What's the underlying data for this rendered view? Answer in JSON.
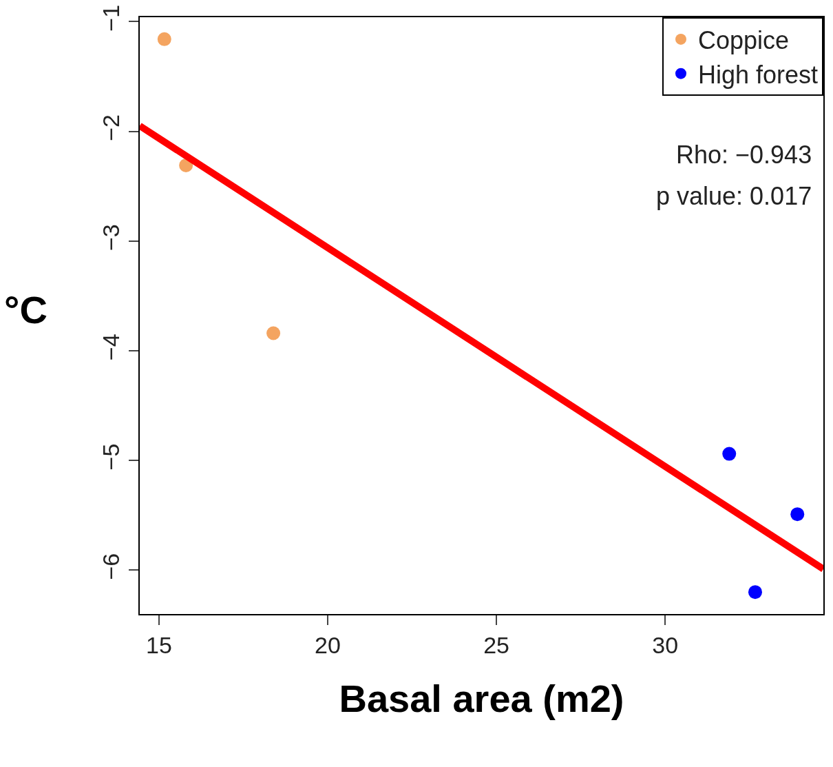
{
  "chart_data": {
    "type": "scatter",
    "xlabel": "Basal area (m2)",
    "ylabel": "°C",
    "xlim": [
      14.43,
      34.69
    ],
    "xticks": [
      15,
      20,
      25,
      30
    ],
    "ylim": [
      -6.4,
      -0.96
    ],
    "yticks": [
      {
        "value": -6,
        "label": "−6"
      },
      {
        "value": -5,
        "label": "−5"
      },
      {
        "value": -4,
        "label": "−4"
      },
      {
        "value": -3,
        "label": "−3"
      },
      {
        "value": -2,
        "label": "−2"
      },
      {
        "value": -1,
        "label": "−1"
      }
    ],
    "grid": false,
    "legend": "top right",
    "series": [
      {
        "name": "Coppice",
        "color": "#f4a460",
        "marker": "circle",
        "x": [
          15.16,
          15.8,
          18.39
        ],
        "values": [
          -1.16,
          -2.31,
          -3.84
        ]
      },
      {
        "name": "High forest",
        "color": "#0000ff",
        "marker": "circle",
        "x": [
          31.9,
          33.92,
          32.67
        ],
        "values": [
          -4.94,
          -5.49,
          -6.2
        ]
      },
      {
        "type": "line",
        "color": "#ff0000",
        "marker": "none",
        "x": [
          14.43,
          34.69
        ],
        "values": [
          -1.95,
          -5.99
        ]
      }
    ],
    "annotations": [
      "Rho: −0.943",
      "p value: 0.017"
    ]
  }
}
